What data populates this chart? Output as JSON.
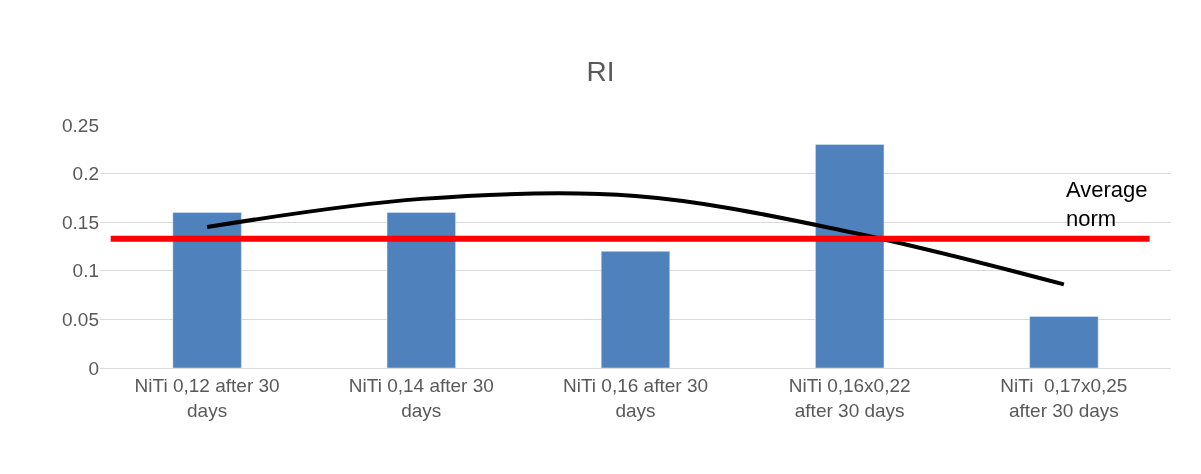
{
  "chart_data": {
    "type": "bar",
    "title": "RI",
    "categories": [
      "NiTi 0,12 after 30 days",
      "NiTi 0,14 after 30 days",
      "NiTi 0,16 after 30 days",
      "NiTi 0,16x0,22 after 30 days",
      "NiTi  0,17x0,25 after 30 days"
    ],
    "series": [
      {
        "color": "#4f81bd",
        "values": [
          0.16,
          0.16,
          0.12,
          0.23,
          0.053
        ]
      },
      {
        "type": "line",
        "color": "#000000",
        "values": [
          0.145,
          0.174,
          0.177,
          0.14,
          0.086
        ]
      }
    ],
    "ylim": [
      0,
      0.25
    ],
    "yticks": [
      0,
      0.05,
      0.1,
      0.15,
      0.2,
      0.25
    ],
    "grid": "y",
    "ref_lines": [
      {
        "axis": "y",
        "value": 0.133,
        "label": "Average norm",
        "color": "#ff0000"
      }
    ]
  }
}
